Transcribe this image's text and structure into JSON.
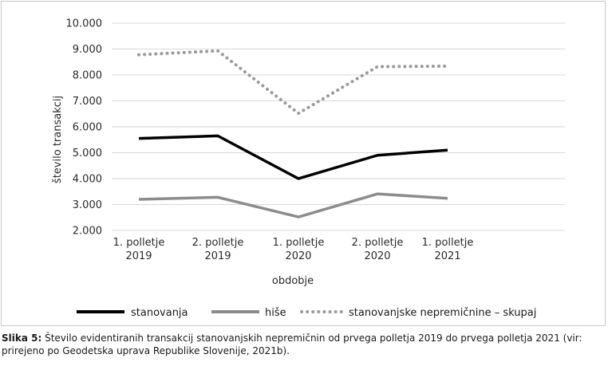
{
  "chart_data": {
    "type": "line",
    "categories": [
      [
        "1. polletje",
        "2019"
      ],
      [
        "2. polletje",
        "2019"
      ],
      [
        "1. polletje",
        "2020"
      ],
      [
        "2. polletje",
        "2020"
      ],
      [
        "1. polletje",
        "2021"
      ]
    ],
    "series": [
      {
        "name": "stanovanja",
        "values": [
          5550,
          5650,
          4000,
          4900,
          5100
        ],
        "color": "#000000",
        "style": "solid"
      },
      {
        "name": "hiše",
        "values": [
          3200,
          3280,
          2520,
          3410,
          3240
        ],
        "color": "#8c8c8c",
        "style": "solid"
      },
      {
        "name": "stanovanjske nepremičnine – skupaj",
        "values": [
          8780,
          8930,
          6520,
          8320,
          8340
        ],
        "color": "#9a9a9a",
        "style": "dotted"
      }
    ],
    "xlabel": "obdobje",
    "ylabel": "število transakcij",
    "ylim": [
      2000,
      10000
    ],
    "yticks": [
      "2.000",
      "3.000",
      "4.000",
      "5.000",
      "6.000",
      "7.000",
      "8.000",
      "9.000",
      "10.000"
    ],
    "grid": true,
    "legend_position": "bottom"
  },
  "caption": {
    "label": "Slika 5:",
    "text": " Število evidentiranih transakcij stanovanjskih nepremičnin od prvega polletja 2019 do prvega polletja 2021 (vir: prirejeno po Geodetska uprava Republike Slovenije, 2021b)."
  }
}
